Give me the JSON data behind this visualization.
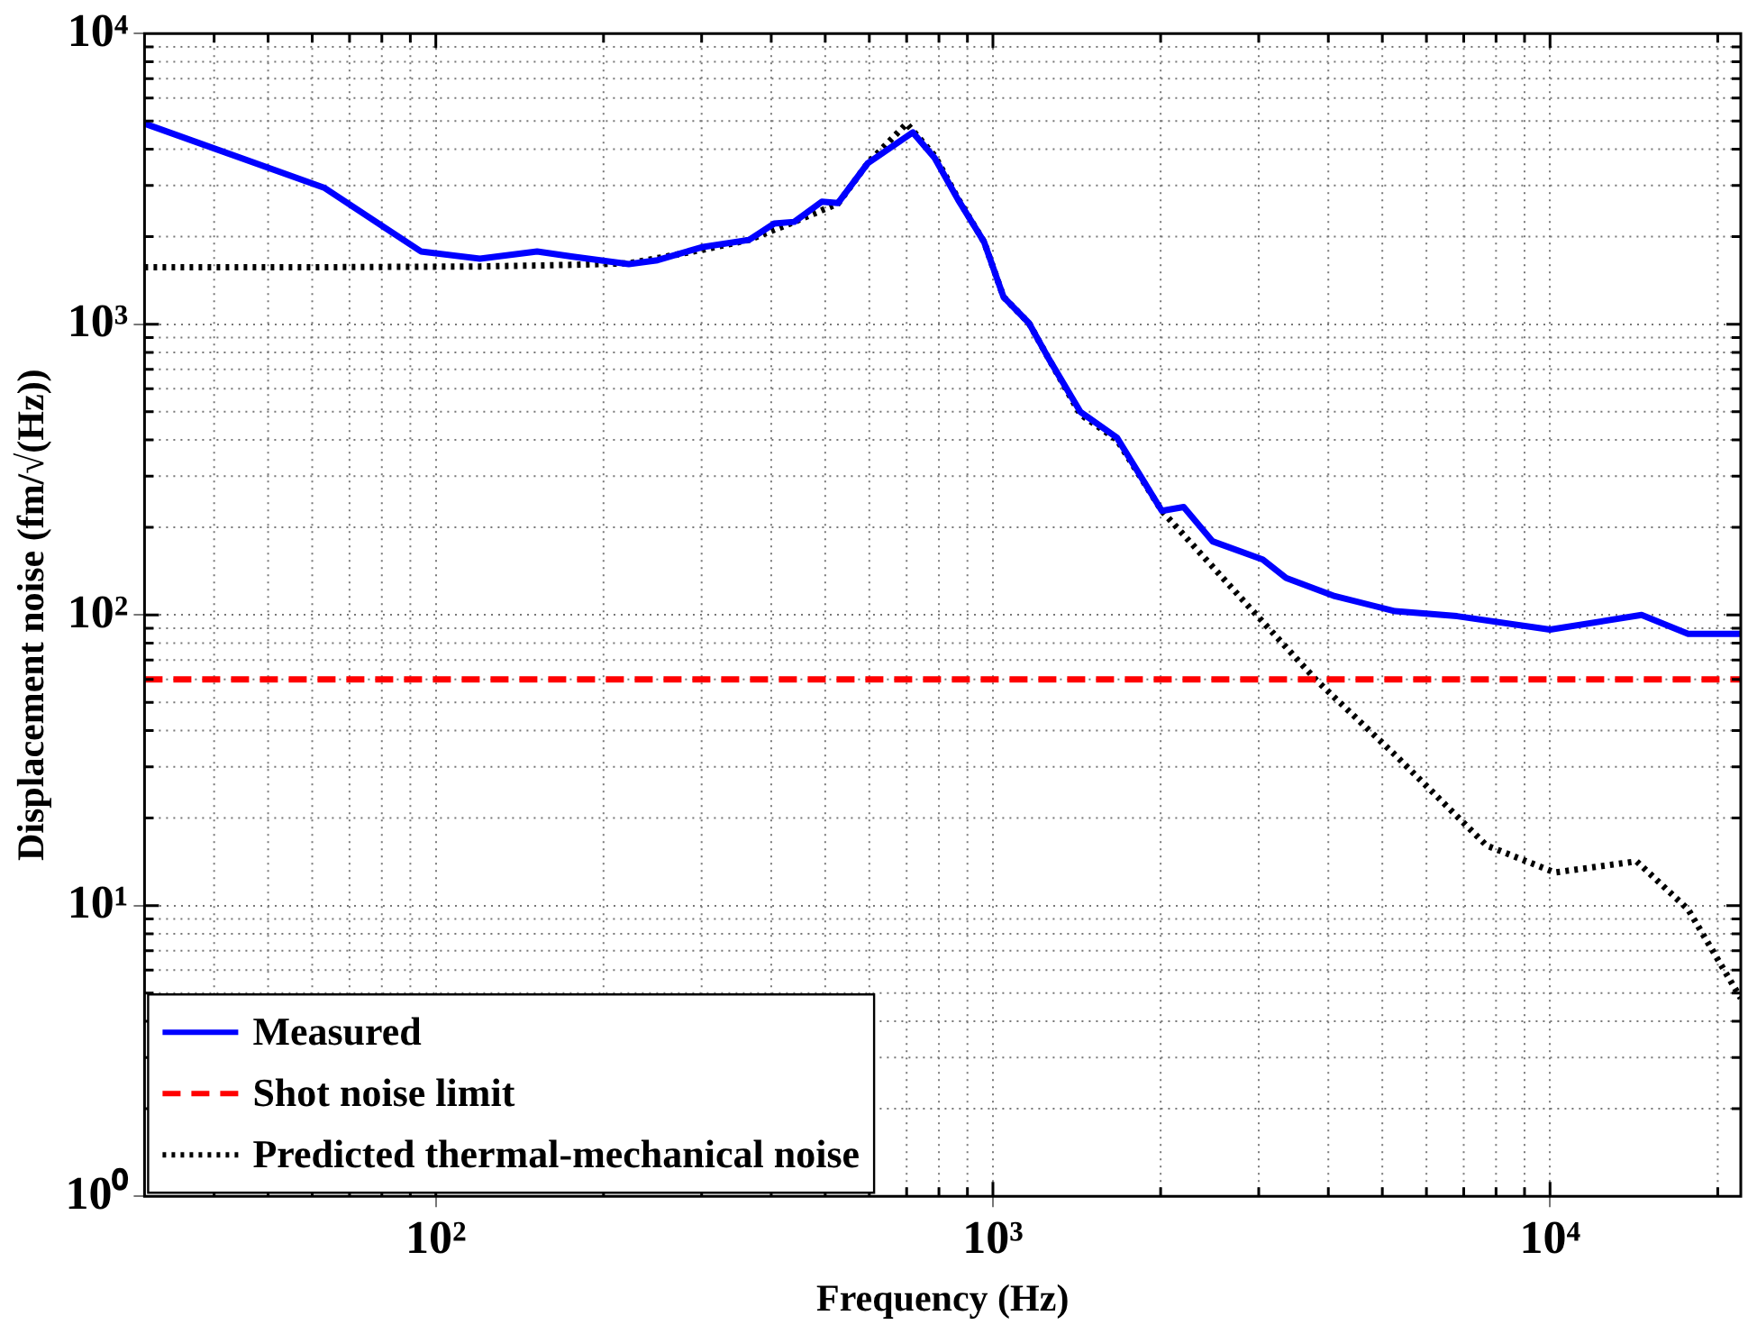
{
  "chart_data": {
    "type": "line",
    "xlabel": "Frequency (Hz)",
    "ylabel": "Displacement noise (fm/√(Hz))",
    "log": "xy",
    "grid": true,
    "legend": "bottom left",
    "marker": "none",
    "xlim": [
      30,
      22000
    ],
    "xticks": [
      {
        "value": 100,
        "label": "10²"
      },
      {
        "value": 1000,
        "label": "10³"
      },
      {
        "value": 10000,
        "label": "10⁴"
      }
    ],
    "ylim": [
      1,
      10000
    ],
    "yticks": [
      {
        "value": 1,
        "label": "10⁰"
      },
      {
        "value": 10,
        "label": "10¹"
      },
      {
        "value": 100,
        "label": "10²"
      },
      {
        "value": 1000,
        "label": "10³"
      },
      {
        "value": 10000,
        "label": "10⁴"
      }
    ],
    "series": [
      {
        "name": "Measured",
        "color": "#0000ff",
        "line_style": "solid",
        "x": [
          30,
          63,
          94,
          120,
          152,
          175,
          222,
          250,
          300,
          365,
          405,
          440,
          493,
          527,
          596,
          718,
          786,
          866,
          964,
          1045,
          1160,
          1260,
          1435,
          1670,
          2010,
          2200,
          2480,
          3050,
          3360,
          4110,
          5270,
          6810,
          10000,
          14600,
          17700,
          22000
        ],
        "values": [
          4900,
          2950,
          1780,
          1680,
          1780,
          1710,
          1610,
          1660,
          1840,
          1950,
          2220,
          2250,
          2640,
          2610,
          3580,
          4570,
          3730,
          2680,
          1920,
          1240,
          1010,
          760,
          500,
          407,
          228,
          235,
          179,
          155,
          134,
          116,
          103,
          99,
          89,
          100,
          86,
          86
        ]
      },
      {
        "name": "Shot noise limit",
        "color": "#ff0000",
        "line_style": "dashed",
        "x": [
          30,
          22000
        ],
        "values": [
          60,
          60
        ]
      },
      {
        "name": "Predicted thermal-mechanical noise",
        "color": "#000000",
        "line_style": "dotted",
        "x": [
          30,
          60,
          120,
          175,
          222,
          300,
          365,
          440,
          527,
          596,
          700,
          786,
          866,
          964,
          1045,
          1160,
          1260,
          1435,
          1670,
          2010,
          2890,
          3810,
          5270,
          7690,
          10200,
          14300,
          17700,
          22000
        ],
        "values": [
          1570,
          1570,
          1580,
          1600,
          1620,
          1800,
          1950,
          2250,
          2600,
          3580,
          4900,
          3800,
          2700,
          1920,
          1240,
          1010,
          760,
          490,
          400,
          228,
          106,
          59.5,
          33,
          16.1,
          13,
          14.2,
          9.7,
          4.8
        ]
      }
    ]
  }
}
